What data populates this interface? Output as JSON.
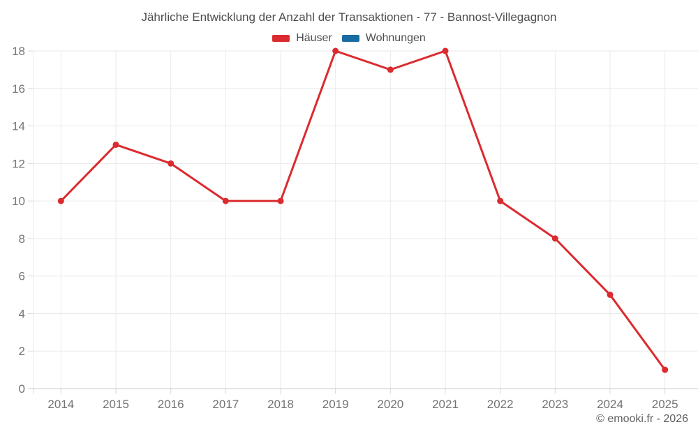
{
  "title": "Jährliche Entwicklung der Anzahl der Transaktionen - 77 - Bannost-Villegagnon",
  "chart_data": {
    "type": "line",
    "title": "Jährliche Entwicklung der Anzahl der Transaktionen - 77 - Bannost-Villegagnon",
    "x": [
      "2014",
      "2015",
      "2016",
      "2017",
      "2018",
      "2019",
      "2020",
      "2021",
      "2022",
      "2023",
      "2024",
      "2025"
    ],
    "series": [
      {
        "name": "Häuser",
        "color": "#db2b2f",
        "values": [
          10,
          13,
          12,
          10,
          10,
          18,
          17,
          18,
          10,
          8,
          5,
          1
        ]
      },
      {
        "name": "Wohnungen",
        "color": "#1a6da3",
        "values": []
      }
    ],
    "ylim": [
      0,
      18
    ],
    "yticks": [
      0,
      2,
      4,
      6,
      8,
      10,
      12,
      14,
      16,
      18
    ],
    "xlabel": "",
    "ylabel": "",
    "grid": true,
    "legend_position": "top"
  },
  "footer": {
    "copyright": "© emooki.fr - 2026"
  },
  "colors": {
    "background": "#ffffff",
    "grid": "#eaeaea",
    "axis_line": "#c8c8c8",
    "tick": "#d9d9d9",
    "tick_label": "#747474",
    "title_text": "#4d4e50"
  }
}
